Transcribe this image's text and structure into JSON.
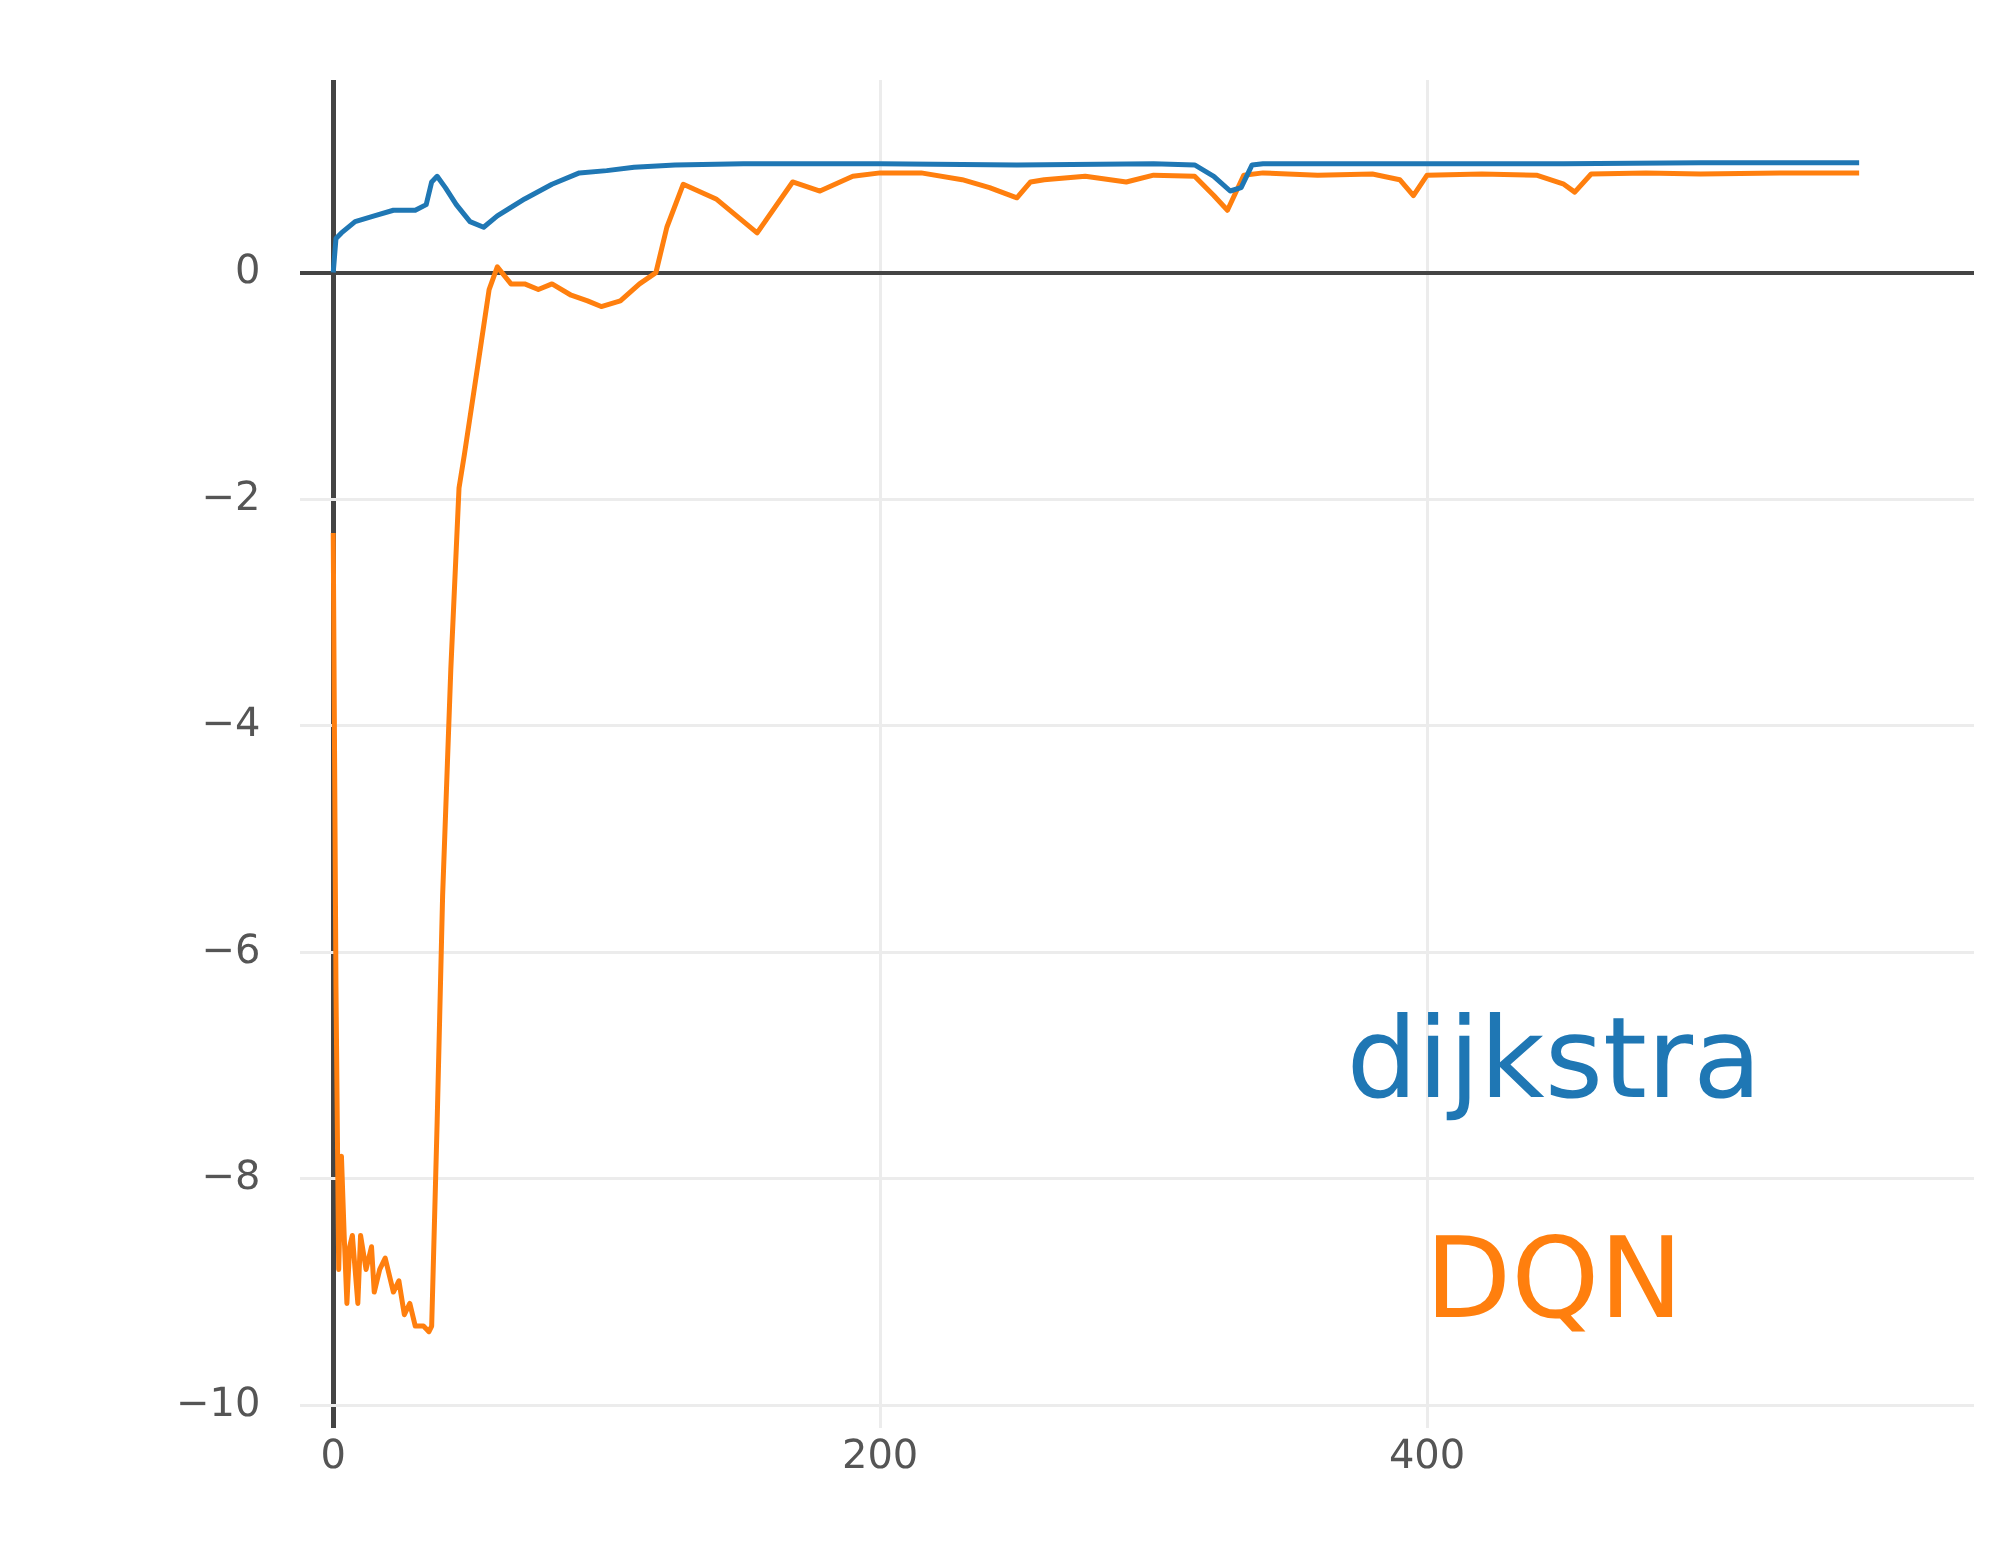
{
  "chart_data": {
    "type": "line",
    "xlim": [
      -12,
      600
    ],
    "ylim": [
      -10.2,
      1.7
    ],
    "xticks": [
      0,
      200,
      400
    ],
    "yticks": [
      -10,
      -8,
      -6,
      -4,
      -2,
      0
    ],
    "grid": true,
    "legend": "bottom right",
    "marker": "none",
    "line_style": "solid",
    "series": [
      {
        "name": "dijkstra",
        "color": "#1f77b4",
        "x": [
          0,
          1,
          3,
          8,
          15,
          22,
          30,
          34,
          36,
          38,
          41,
          45,
          50,
          55,
          60,
          70,
          80,
          90,
          100,
          110,
          125,
          150,
          200,
          250,
          300,
          315,
          322,
          328,
          332,
          336,
          340,
          360,
          400,
          450,
          500,
          540,
          558
        ],
        "values": [
          0,
          0.3,
          0.35,
          0.45,
          0.5,
          0.55,
          0.55,
          0.6,
          0.8,
          0.85,
          0.75,
          0.6,
          0.45,
          0.4,
          0.5,
          0.65,
          0.78,
          0.88,
          0.9,
          0.93,
          0.95,
          0.96,
          0.96,
          0.95,
          0.96,
          0.95,
          0.85,
          0.72,
          0.75,
          0.95,
          0.96,
          0.96,
          0.96,
          0.96,
          0.97,
          0.97,
          0.97
        ]
      },
      {
        "name": "DQN",
        "color": "#ff7f0e",
        "x": [
          0,
          1,
          2,
          3,
          4,
          5,
          6,
          7,
          9,
          10,
          12,
          14,
          15,
          17,
          19,
          22,
          24,
          26,
          28,
          30,
          33,
          35,
          36,
          38,
          40,
          43,
          46,
          48,
          53,
          57,
          60,
          65,
          70,
          75,
          80,
          87,
          93,
          98,
          105,
          112,
          118,
          122,
          128,
          140,
          155,
          168,
          178,
          190,
          200,
          215,
          230,
          240,
          250,
          255,
          260,
          275,
          290,
          300,
          315,
          322,
          327,
          333,
          340,
          360,
          380,
          390,
          395,
          400,
          420,
          440,
          450,
          454,
          460,
          480,
          500,
          530,
          558
        ],
        "values": [
          -2.3,
          -6.3,
          -8.8,
          -7.8,
          -8.5,
          -9.1,
          -8.6,
          -8.5,
          -9.1,
          -8.5,
          -8.8,
          -8.6,
          -9.0,
          -8.8,
          -8.7,
          -9.0,
          -8.9,
          -9.2,
          -9.1,
          -9.3,
          -9.3,
          -9.35,
          -9.3,
          -7.5,
          -5.5,
          -3.5,
          -1.9,
          -1.6,
          -0.8,
          -0.15,
          0.05,
          -0.1,
          -0.1,
          -0.15,
          -0.1,
          -0.2,
          -0.25,
          -0.3,
          -0.25,
          -0.1,
          0.0,
          0.4,
          0.78,
          0.65,
          0.35,
          0.8,
          0.72,
          0.85,
          0.88,
          0.88,
          0.82,
          0.75,
          0.66,
          0.8,
          0.82,
          0.85,
          0.8,
          0.86,
          0.85,
          0.68,
          0.55,
          0.86,
          0.88,
          0.86,
          0.87,
          0.82,
          0.68,
          0.86,
          0.87,
          0.86,
          0.78,
          0.71,
          0.87,
          0.88,
          0.87,
          0.88,
          0.88
        ]
      }
    ]
  }
}
